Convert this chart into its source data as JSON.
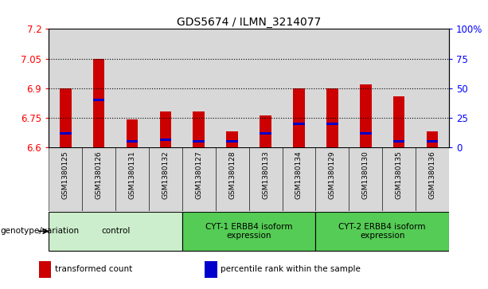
{
  "title": "GDS5674 / ILMN_3214077",
  "samples": [
    "GSM1380125",
    "GSM1380126",
    "GSM1380131",
    "GSM1380132",
    "GSM1380127",
    "GSM1380128",
    "GSM1380133",
    "GSM1380134",
    "GSM1380129",
    "GSM1380130",
    "GSM1380135",
    "GSM1380136"
  ],
  "red_values": [
    6.9,
    7.05,
    6.74,
    6.78,
    6.78,
    6.68,
    6.76,
    6.9,
    6.9,
    6.92,
    6.86,
    6.68
  ],
  "blue_values": [
    6.67,
    6.84,
    6.63,
    6.64,
    6.63,
    6.63,
    6.67,
    6.72,
    6.72,
    6.67,
    6.63,
    6.63
  ],
  "ymin": 6.6,
  "ymax": 7.2,
  "yticks_left": [
    6.6,
    6.75,
    6.9,
    7.05,
    7.2
  ],
  "yticks_right_vals": [
    0,
    25,
    50,
    75,
    100
  ],
  "bar_color": "#cc0000",
  "blue_color": "#0000cc",
  "groups": [
    {
      "label": "control",
      "start": 0,
      "end": 3,
      "color": "#cceecc"
    },
    {
      "label": "CYT-1 ERBB4 isoform\nexpression",
      "start": 4,
      "end": 7,
      "color": "#55cc55"
    },
    {
      "label": "CYT-2 ERBB4 isoform\nexpression",
      "start": 8,
      "end": 11,
      "color": "#55cc55"
    }
  ],
  "legend_items": [
    {
      "label": "transformed count",
      "color": "#cc0000"
    },
    {
      "label": "percentile rank within the sample",
      "color": "#0000cc"
    }
  ],
  "bar_width": 0.35,
  "genotype_label": "genotype/variation"
}
